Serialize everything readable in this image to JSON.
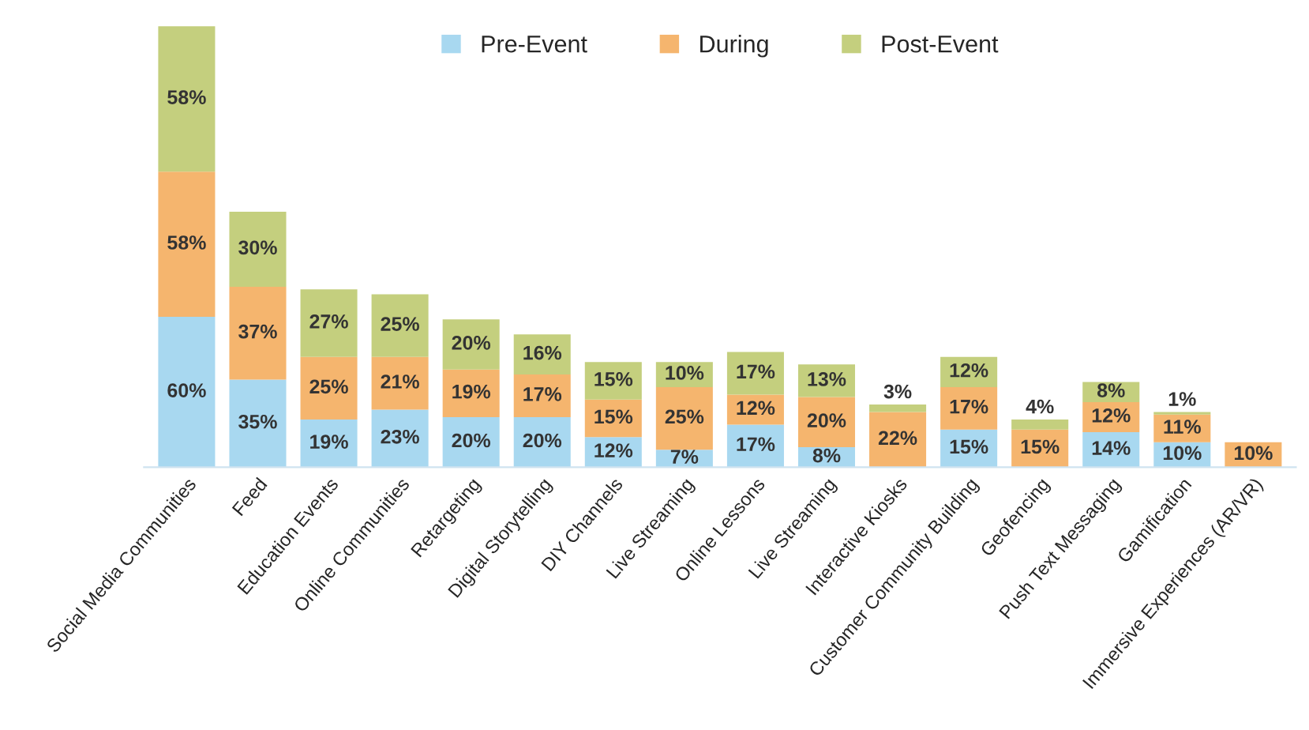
{
  "chart_data": {
    "type": "bar",
    "stacked": true,
    "legend": "top",
    "grid": false,
    "categories": [
      "Social Media Communities",
      "Feed",
      "Education Events",
      "Online Communities",
      "Retargeting",
      "Digital Storytelling",
      "DIY Channels",
      "Live Streaming",
      "Online Lessons",
      "Live Streaming",
      "Interactive Kiosks",
      "Customer Community Building",
      "Geofencing",
      "Push Text Messaging",
      "Gamification",
      "Immersive Experiences (AR/VR)"
    ],
    "series": [
      {
        "name": "Pre-Event",
        "color": "#a8d8f0",
        "values": [
          60,
          35,
          19,
          23,
          20,
          20,
          12,
          7,
          17,
          8,
          null,
          15,
          null,
          14,
          10,
          null
        ],
        "value_labels": [
          "60%",
          "35%",
          "19%",
          "23%",
          "20%",
          "20%",
          "12%",
          "7%",
          "17%",
          "8%",
          null,
          "15%",
          null,
          "14%",
          "10%",
          null
        ]
      },
      {
        "name": "During",
        "color": "#f5b56e",
        "values": [
          58,
          37,
          25,
          21,
          19,
          17,
          15,
          25,
          12,
          20,
          22,
          17,
          15,
          12,
          11,
          10
        ],
        "value_labels": [
          "58%",
          "37%",
          "25%",
          "21%",
          "19%",
          "17%",
          "15%",
          "25%",
          "12%",
          "20%",
          "22%",
          "17%",
          "15%",
          "12%",
          "11%",
          "10%"
        ]
      },
      {
        "name": "Post-Event",
        "color": "#c4cf7e",
        "values": [
          58,
          30,
          27,
          25,
          20,
          16,
          15,
          10,
          17,
          13,
          3,
          12,
          4,
          8,
          1,
          null
        ],
        "value_labels": [
          "58%",
          "30%",
          "27%",
          "25%",
          "20%",
          "16%",
          "15%",
          "10%",
          "17%",
          "13%",
          "3%",
          "12%",
          "4%",
          "8%",
          "1%",
          null
        ]
      }
    ]
  }
}
